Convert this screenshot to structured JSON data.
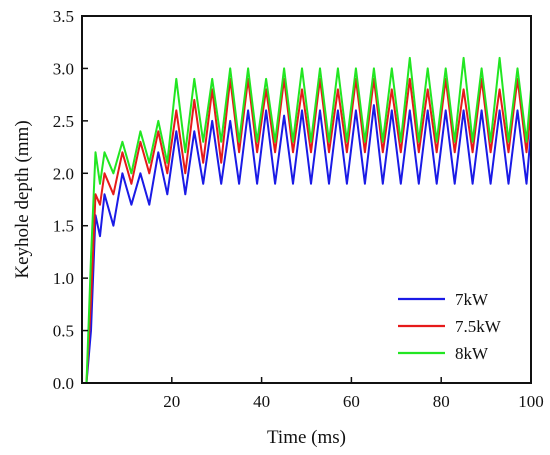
{
  "chart_data": {
    "type": "line",
    "xlabel": "Time (ms)",
    "ylabel": "Keyhole depth (mm)",
    "xlim": [
      0,
      100
    ],
    "ylim": [
      0,
      3.5
    ],
    "x_ticks": [
      "20",
      "40",
      "60",
      "80",
      "100"
    ],
    "y_ticks": [
      "0.0",
      "0.5",
      "1.0",
      "1.5",
      "2.0",
      "2.5",
      "3.0",
      "3.5"
    ],
    "grid": false,
    "legend_position": "bottom-right",
    "series": [
      {
        "name": "7kW",
        "color": "#1a1ae6",
        "x": [
          0,
          1,
          2,
          3,
          4,
          5,
          7,
          9,
          11,
          13,
          15,
          17,
          19,
          21,
          23,
          25,
          27,
          29,
          31,
          33,
          35,
          37,
          39,
          41,
          43,
          45,
          47,
          49,
          51,
          53,
          55,
          57,
          59,
          61,
          63,
          65,
          67,
          69,
          71,
          73,
          75,
          77,
          79,
          81,
          83,
          85,
          87,
          89,
          91,
          93,
          95,
          97,
          99,
          100
        ],
        "y": [
          0,
          0,
          0.5,
          1.6,
          1.4,
          1.8,
          1.5,
          2.0,
          1.7,
          2.0,
          1.7,
          2.2,
          1.8,
          2.4,
          1.8,
          2.4,
          1.9,
          2.5,
          1.9,
          2.5,
          1.9,
          2.6,
          1.9,
          2.6,
          1.9,
          2.55,
          1.9,
          2.6,
          1.9,
          2.6,
          1.9,
          2.6,
          1.9,
          2.6,
          1.9,
          2.65,
          1.9,
          2.6,
          1.9,
          2.6,
          1.9,
          2.6,
          1.9,
          2.6,
          1.9,
          2.6,
          1.9,
          2.6,
          1.9,
          2.6,
          1.9,
          2.6,
          1.9,
          2.4
        ]
      },
      {
        "name": "7.5kW",
        "color": "#e61a1a",
        "x": [
          0,
          1,
          2,
          3,
          4,
          5,
          7,
          9,
          11,
          13,
          15,
          17,
          19,
          21,
          23,
          25,
          27,
          29,
          31,
          33,
          35,
          37,
          39,
          41,
          43,
          45,
          47,
          49,
          51,
          53,
          55,
          57,
          59,
          61,
          63,
          65,
          67,
          69,
          71,
          73,
          75,
          77,
          79,
          81,
          83,
          85,
          87,
          89,
          91,
          93,
          95,
          97,
          99,
          100
        ],
        "y": [
          0,
          0,
          0.8,
          1.8,
          1.7,
          2.0,
          1.8,
          2.2,
          1.9,
          2.3,
          2.0,
          2.4,
          2.0,
          2.6,
          2.0,
          2.7,
          2.1,
          2.8,
          2.1,
          2.9,
          2.2,
          2.9,
          2.2,
          2.8,
          2.2,
          2.9,
          2.2,
          2.8,
          2.2,
          2.9,
          2.2,
          2.8,
          2.2,
          2.9,
          2.2,
          2.9,
          2.2,
          2.8,
          2.2,
          2.9,
          2.2,
          2.8,
          2.2,
          2.9,
          2.2,
          2.8,
          2.2,
          2.9,
          2.2,
          2.8,
          2.2,
          2.9,
          2.2,
          2.6
        ]
      },
      {
        "name": "8kW",
        "color": "#22e622",
        "x": [
          0,
          1,
          2,
          3,
          4,
          5,
          7,
          9,
          11,
          13,
          15,
          17,
          19,
          21,
          23,
          25,
          27,
          29,
          31,
          33,
          35,
          37,
          39,
          41,
          43,
          45,
          47,
          49,
          51,
          53,
          55,
          57,
          59,
          61,
          63,
          65,
          67,
          69,
          71,
          73,
          75,
          77,
          79,
          81,
          83,
          85,
          87,
          89,
          91,
          93,
          95,
          97,
          99,
          100
        ],
        "y": [
          0,
          0,
          1.2,
          2.2,
          1.9,
          2.2,
          2.0,
          2.3,
          2.0,
          2.4,
          2.1,
          2.5,
          2.1,
          2.9,
          2.2,
          2.9,
          2.3,
          2.9,
          2.3,
          3.0,
          2.3,
          3.0,
          2.3,
          2.9,
          2.3,
          3.0,
          2.3,
          3.0,
          2.3,
          3.0,
          2.3,
          3.0,
          2.3,
          3.0,
          2.3,
          3.0,
          2.3,
          3.0,
          2.3,
          3.1,
          2.3,
          3.0,
          2.3,
          3.0,
          2.3,
          3.1,
          2.3,
          3.0,
          2.3,
          3.1,
          2.3,
          3.0,
          2.3,
          2.8
        ]
      }
    ]
  }
}
